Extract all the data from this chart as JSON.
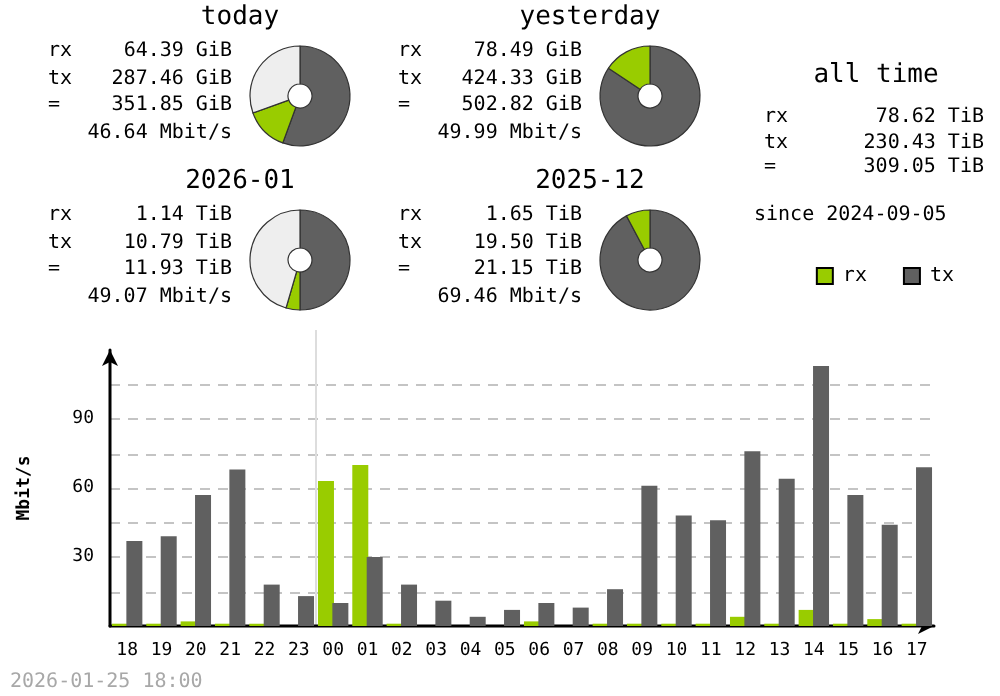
{
  "chart_data": [
    {
      "type": "donut",
      "title": "today",
      "annotations": [
        "rx 64.39 GiB",
        "tx 287.46 GiB",
        "= 351.85 GiB",
        "46.64 Mbit/s"
      ],
      "categories": [
        null,
        null,
        null
      ],
      "values": [
        55.6,
        13.9,
        30.5
      ],
      "colors": [
        "#606060",
        "#99cc00",
        "#eeeeee"
      ]
    },
    {
      "type": "donut",
      "title": "yesterday",
      "annotations": [
        "rx 78.49 GiB",
        "tx 424.33 GiB",
        "= 502.82 GiB",
        "49.99 Mbit/s"
      ],
      "categories": [
        null,
        null
      ],
      "values": [
        84.4,
        15.6
      ],
      "colors": [
        "#606060",
        "#99cc00"
      ]
    },
    {
      "type": "donut",
      "title": "2026-01",
      "annotations": [
        "rx 1.14 TiB",
        "tx 10.79 TiB",
        "= 11.93 TiB",
        "49.07 Mbit/s"
      ],
      "categories": [
        null,
        null,
        null
      ],
      "values": [
        50,
        4.5,
        45.5
      ],
      "colors": [
        "#606060",
        "#99cc00",
        "#eeeeee"
      ]
    },
    {
      "type": "donut",
      "title": "2025-12",
      "annotations": [
        "rx 1.65 TiB",
        "tx 19.50 TiB",
        "= 21.15 TiB",
        "69.46 Mbit/s"
      ],
      "categories": [
        null,
        null
      ],
      "values": [
        92.2,
        7.8
      ],
      "colors": [
        "#606060",
        "#99cc00"
      ]
    },
    {
      "type": "other",
      "title": "all time",
      "annotations": [
        "rx 78.62 TiB",
        "tx 230.43 TiB",
        "= 309.05 TiB",
        "since 2024-09-05"
      ]
    },
    {
      "type": "bar",
      "ylabel": "Mbit/s",
      "annotations": [
        "2026-01-25 18:00"
      ],
      "legend": "top right",
      "grid": "y",
      "categories": [
        "18",
        "19",
        "20",
        "21",
        "22",
        "23",
        "00",
        "01",
        "02",
        "03",
        "04",
        "05",
        "06",
        "07",
        "08",
        "09",
        "10",
        "11",
        "12",
        "13",
        "14",
        "15",
        "16",
        "17"
      ],
      "ylim": [
        0,
        120
      ],
      "yticks": [
        {
          "value": 15,
          "label": null
        },
        30,
        {
          "value": 45,
          "label": null
        },
        60,
        {
          "value": 75,
          "label": null
        },
        90,
        {
          "value": 105,
          "label": null
        }
      ],
      "ref_lines": [
        {
          "axis": "x",
          "value": "00",
          "label": null,
          "color": "#dddddd"
        }
      ],
      "series": [
        {
          "name": "rx",
          "color": "#99cc00",
          "values": [
            1,
            1,
            2,
            1,
            1,
            0,
            63,
            70,
            1,
            0,
            0,
            0,
            2,
            0,
            1,
            1,
            1,
            1,
            4,
            1,
            7,
            1,
            3,
            1
          ]
        },
        {
          "name": "tx",
          "color": "#606060",
          "values": [
            37,
            39,
            57,
            68,
            18,
            13,
            10,
            30,
            18,
            11,
            4,
            7,
            10,
            8,
            16,
            61,
            48,
            46,
            76,
            64,
            113,
            57,
            44,
            69
          ]
        }
      ]
    }
  ]
}
